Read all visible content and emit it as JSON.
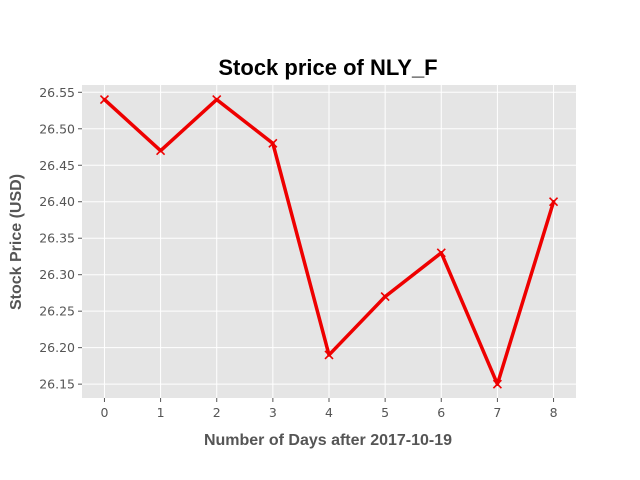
{
  "chart_data": {
    "type": "line",
    "title": "Stock price of NLY_F",
    "xlabel": "Number of Days after 2017-10-19",
    "ylabel": "Stock Price (USD)",
    "x": [
      0,
      1,
      2,
      3,
      4,
      5,
      6,
      7,
      8
    ],
    "series": [
      {
        "values": [
          26.54,
          26.47,
          26.54,
          26.48,
          26.19,
          26.27,
          26.33,
          26.15,
          26.4
        ]
      }
    ],
    "x_ticks": [
      "0",
      "1",
      "2",
      "3",
      "4",
      "5",
      "6",
      "7",
      "8"
    ],
    "y_ticks": [
      "26.15",
      "26.20",
      "26.25",
      "26.30",
      "26.35",
      "26.40",
      "26.45",
      "26.50",
      "26.55"
    ],
    "xlim": [
      -0.4,
      8.4
    ],
    "ylim": [
      26.131,
      26.56
    ],
    "grid": true,
    "line_color": "#ee0000",
    "marker": "x",
    "background_color": "#e5e5e5",
    "grid_color": "#ffffff"
  }
}
